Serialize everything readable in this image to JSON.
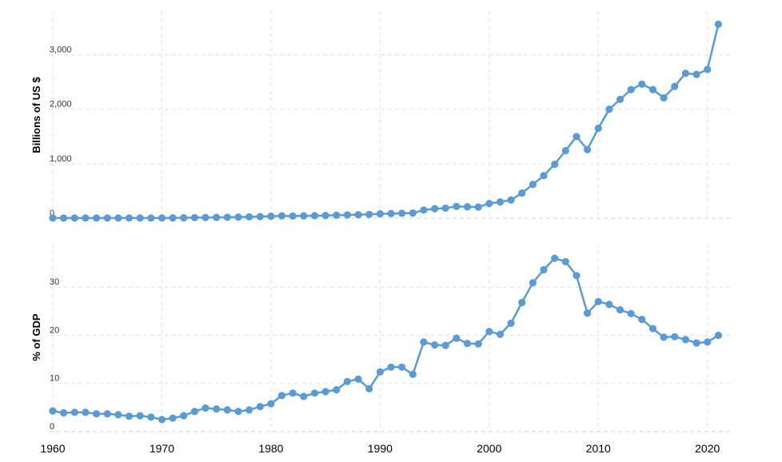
{
  "chart_data": [
    {
      "type": "line",
      "ylabel": "Billions of US $",
      "xlim": [
        1960,
        2022
      ],
      "ylim": [
        0,
        3800
      ],
      "yticks": [
        0,
        1000,
        2000,
        3000
      ],
      "ytick_labels": [
        "0",
        "1,000",
        "2,000",
        "3,000"
      ],
      "grid": true,
      "color": "#5b9bd5",
      "series": [
        {
          "x": [
            1960,
            1961,
            1962,
            1963,
            1964,
            1965,
            1966,
            1967,
            1968,
            1969,
            1970,
            1971,
            1972,
            1973,
            1974,
            1975,
            1976,
            1977,
            1978,
            1979,
            1980,
            1981,
            1982,
            1983,
            1984,
            1985,
            1986,
            1987,
            1988,
            1989,
            1990,
            1991,
            1992,
            1993,
            1994,
            1995,
            1996,
            1997,
            1998,
            1999,
            2000,
            2001,
            2002,
            2003,
            2004,
            2005,
            2006,
            2007,
            2008,
            2009,
            2010,
            2011,
            2012,
            2013,
            2014,
            2015,
            2016,
            2017,
            2018,
            2019,
            2020,
            2021
          ],
          "values": [
            3,
            3,
            3,
            4,
            4,
            4,
            4,
            4,
            4,
            4,
            5,
            6,
            7,
            10,
            13,
            15,
            17,
            20,
            25,
            30,
            36,
            42,
            40,
            42,
            46,
            50,
            54,
            60,
            65,
            70,
            80,
            85,
            90,
            95,
            150,
            175,
            185,
            215,
            210,
            205,
            270,
            300,
            335,
            460,
            620,
            780,
            990,
            1240,
            1500,
            1260,
            1650,
            2000,
            2180,
            2360,
            2460,
            2360,
            2210,
            2420,
            2660,
            2640,
            2730,
            3560
          ]
        }
      ]
    },
    {
      "type": "line",
      "ylabel": "% of GDP",
      "xlim": [
        1960,
        2022
      ],
      "ylim": [
        0,
        39
      ],
      "yticks": [
        0,
        10,
        20,
        30
      ],
      "ytick_labels": [
        "0",
        "10",
        "20",
        "30"
      ],
      "xticks": [
        1960,
        1970,
        1980,
        1990,
        2000,
        2010,
        2020
      ],
      "xtick_labels": [
        "1960",
        "1970",
        "1980",
        "1990",
        "2000",
        "2010",
        "2020"
      ],
      "grid": true,
      "color": "#5b9bd5",
      "series": [
        {
          "x": [
            1960,
            1961,
            1962,
            1963,
            1964,
            1965,
            1966,
            1967,
            1968,
            1969,
            1970,
            1971,
            1972,
            1973,
            1974,
            1975,
            1976,
            1977,
            1978,
            1979,
            1980,
            1981,
            1982,
            1983,
            1984,
            1985,
            1986,
            1987,
            1988,
            1989,
            1990,
            1991,
            1992,
            1993,
            1994,
            1995,
            1996,
            1997,
            1998,
            1999,
            2000,
            2001,
            2002,
            2003,
            2004,
            2005,
            2006,
            2007,
            2008,
            2009,
            2010,
            2011,
            2012,
            2013,
            2014,
            2015,
            2016,
            2017,
            2018,
            2019,
            2020,
            2021
          ],
          "values": [
            4.3,
            3.9,
            4.0,
            4.0,
            3.7,
            3.7,
            3.5,
            3.2,
            3.3,
            3.0,
            2.5,
            2.8,
            3.3,
            4.2,
            4.9,
            4.7,
            4.5,
            4.2,
            4.5,
            5.2,
            5.8,
            7.5,
            8.0,
            7.3,
            8.0,
            8.3,
            8.7,
            10.4,
            10.9,
            8.9,
            12.4,
            13.4,
            13.4,
            11.9,
            18.6,
            18.0,
            17.9,
            19.4,
            18.3,
            18.2,
            20.8,
            20.2,
            22.5,
            26.8,
            30.9,
            33.6,
            36.0,
            35.3,
            32.4,
            24.6,
            27.0,
            26.4,
            25.3,
            24.5,
            23.3,
            21.4,
            19.6,
            19.7,
            19.1,
            18.4,
            18.6,
            20.0
          ]
        }
      ]
    }
  ]
}
